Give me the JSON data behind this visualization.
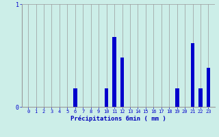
{
  "categories": [
    0,
    1,
    2,
    3,
    4,
    5,
    6,
    7,
    8,
    9,
    10,
    11,
    12,
    13,
    14,
    15,
    16,
    17,
    18,
    19,
    20,
    21,
    22,
    23
  ],
  "values": [
    0,
    0,
    0,
    0,
    0,
    0,
    0.18,
    0,
    0,
    0,
    0.18,
    0.68,
    0.48,
    0,
    0,
    0,
    0,
    0,
    0,
    0.18,
    0,
    0.62,
    0.18,
    0.38
  ],
  "bar_color": "#0000cc",
  "bg_color": "#cceee8",
  "grid_color": "#999999",
  "ylim": [
    0,
    1.0
  ],
  "yticks": [
    0,
    1
  ],
  "xlabel": "Précipitations 6min ( mm )",
  "xlabel_color": "#0000bb",
  "figsize": [
    3.2,
    2.0
  ],
  "dpi": 100
}
